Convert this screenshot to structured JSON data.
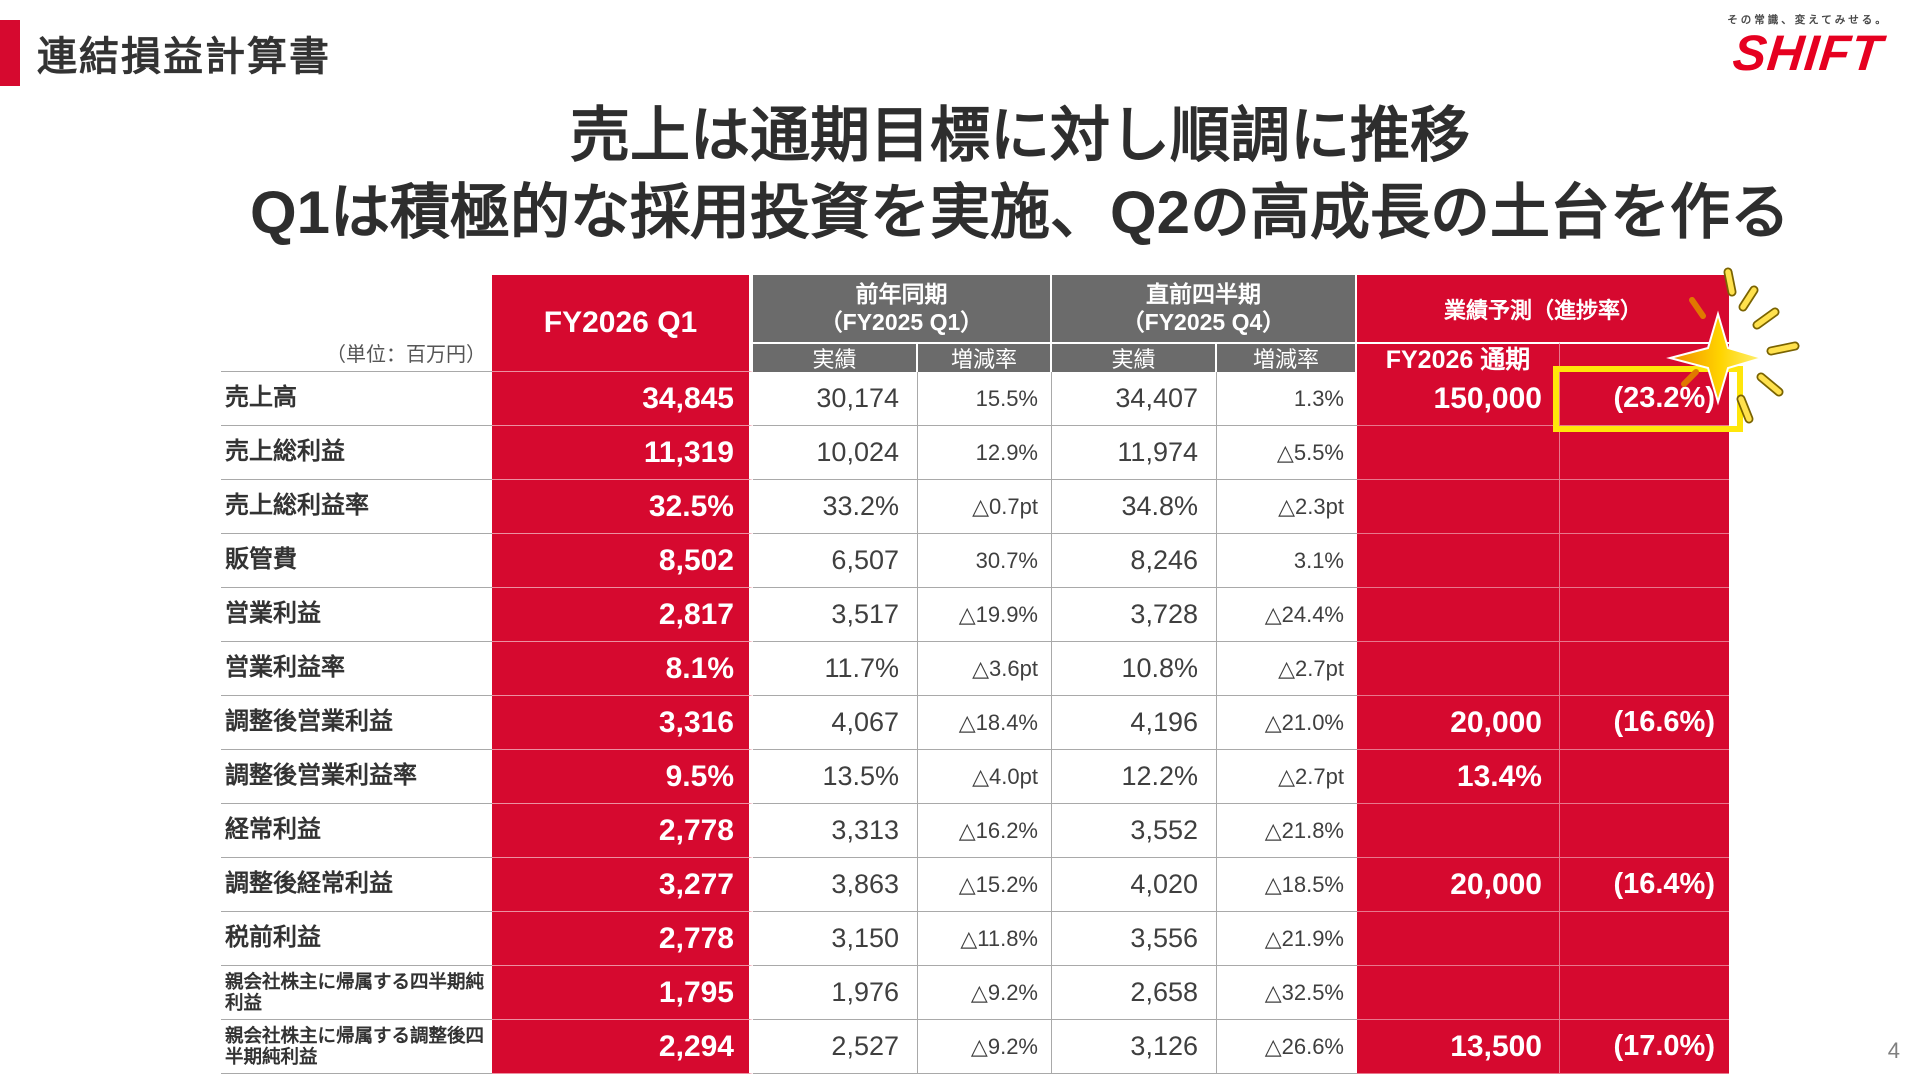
{
  "page": {
    "title": "連結損益計算書",
    "page_number": "4"
  },
  "logo": {
    "tagline": "その常識、変えてみせる。",
    "brand": "SHIFT"
  },
  "headline": {
    "line1": "売上は通期目標に対し順調に推移",
    "line2": "Q1は積極的な採用投資を実施、Q2の高成長の土台を作る"
  },
  "table": {
    "unit_note": "（単位：百万円）",
    "columns": {
      "current": "FY2026 Q1",
      "yoy_group_line1": "前年同期",
      "yoy_group_line2": "（FY2025 Q1）",
      "qoq_group_line1": "直前四半期",
      "qoq_group_line2": "（FY2025 Q4）",
      "forecast_group": "業績予測（進捗率）",
      "actual": "実績",
      "change": "増減率",
      "forecast_sub": "FY2026 通期"
    },
    "rows": [
      {
        "label": "売上高",
        "q1": "34,845",
        "yoy": "30,174",
        "yoy_chg": "15.5%",
        "qoq": "34,407",
        "qoq_chg": "1.3%",
        "fy": "150,000",
        "prog": "(23.2%)",
        "highlight": true
      },
      {
        "label": "売上総利益",
        "q1": "11,319",
        "yoy": "10,024",
        "yoy_chg": "12.9%",
        "qoq": "11,974",
        "qoq_chg": "△5.5%",
        "fy": "",
        "prog": ""
      },
      {
        "label": "売上総利益率",
        "q1": "32.5%",
        "yoy": "33.2%",
        "yoy_chg": "△0.7pt",
        "qoq": "34.8%",
        "qoq_chg": "△2.3pt",
        "fy": "",
        "prog": ""
      },
      {
        "label": "販管費",
        "q1": "8,502",
        "yoy": "6,507",
        "yoy_chg": "30.7%",
        "qoq": "8,246",
        "qoq_chg": "3.1%",
        "fy": "",
        "prog": ""
      },
      {
        "label": "営業利益",
        "q1": "2,817",
        "yoy": "3,517",
        "yoy_chg": "△19.9%",
        "qoq": "3,728",
        "qoq_chg": "△24.4%",
        "fy": "",
        "prog": ""
      },
      {
        "label": "営業利益率",
        "q1": "8.1%",
        "yoy": "11.7%",
        "yoy_chg": "△3.6pt",
        "qoq": "10.8%",
        "qoq_chg": "△2.7pt",
        "fy": "",
        "prog": ""
      },
      {
        "label": "調整後営業利益",
        "q1": "3,316",
        "yoy": "4,067",
        "yoy_chg": "△18.4%",
        "qoq": "4,196",
        "qoq_chg": "△21.0%",
        "fy": "20,000",
        "prog": "(16.6%)"
      },
      {
        "label": "調整後営業利益率",
        "q1": "9.5%",
        "yoy": "13.5%",
        "yoy_chg": "△4.0pt",
        "qoq": "12.2%",
        "qoq_chg": "△2.7pt",
        "fy": "13.4%",
        "prog": ""
      },
      {
        "label": "経常利益",
        "q1": "2,778",
        "yoy": "3,313",
        "yoy_chg": "△16.2%",
        "qoq": "3,552",
        "qoq_chg": "△21.8%",
        "fy": "",
        "prog": ""
      },
      {
        "label": "調整後経常利益",
        "q1": "3,277",
        "yoy": "3,863",
        "yoy_chg": "△15.2%",
        "qoq": "4,020",
        "qoq_chg": "△18.5%",
        "fy": "20,000",
        "prog": "(16.4%)"
      },
      {
        "label": "税前利益",
        "q1": "2,778",
        "yoy": "3,150",
        "yoy_chg": "△11.8%",
        "qoq": "3,556",
        "qoq_chg": "△21.9%",
        "fy": "",
        "prog": ""
      },
      {
        "label": "親会社株主に帰属する四半期純利益",
        "q1": "1,795",
        "yoy": "1,976",
        "yoy_chg": "△9.2%",
        "qoq": "2,658",
        "qoq_chg": "△32.5%",
        "fy": "",
        "prog": "",
        "small": true
      },
      {
        "label": "親会社株主に帰属する調整後四半期純利益",
        "q1": "2,294",
        "yoy": "2,527",
        "yoy_chg": "△9.2%",
        "qoq": "3,126",
        "qoq_chg": "△26.6%",
        "fy": "13,500",
        "prog": "(17.0%)",
        "small": true
      }
    ]
  },
  "colors": {
    "brand_red": "#D6092F",
    "logo_red": "#E60020",
    "header_gray": "#6B6B6B",
    "highlight_yellow": "#FFE60A"
  }
}
